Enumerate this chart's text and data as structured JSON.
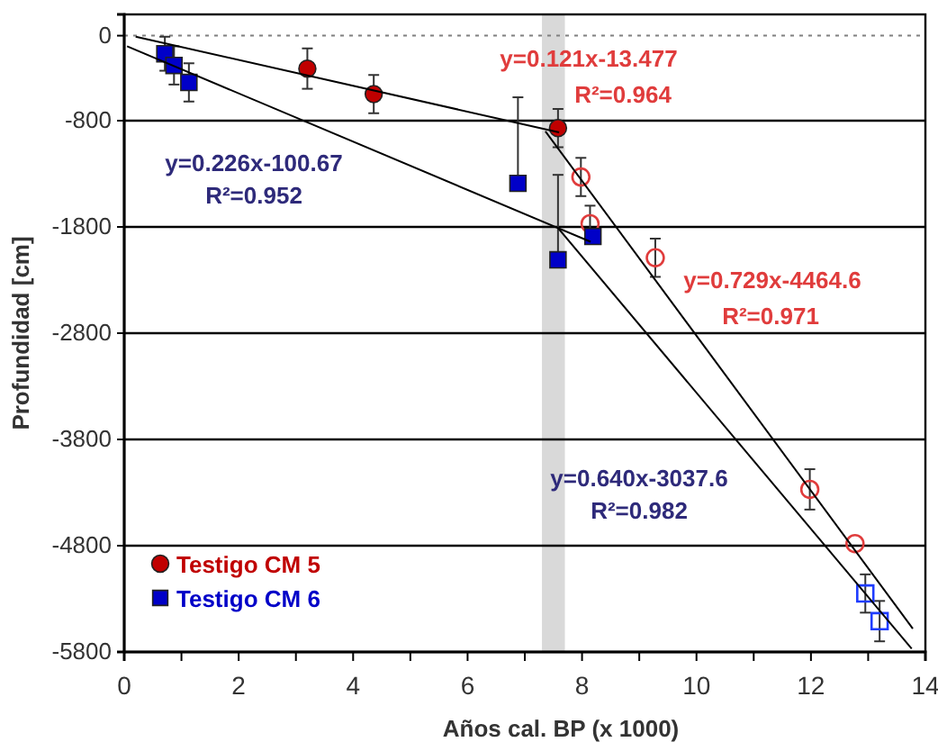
{
  "chart_data": {
    "type": "scatter",
    "xlabel": "Años cal. BP (x 1000)",
    "ylabel": "Profundidad [cm]",
    "xlim": [
      0,
      14
    ],
    "xticks": [
      0,
      {
        "value": 1,
        "label": null
      },
      2,
      {
        "value": 3,
        "label": null
      },
      4,
      {
        "value": 5,
        "label": null
      },
      6,
      {
        "value": 7,
        "label": null
      },
      8,
      {
        "value": 9,
        "label": null
      },
      10,
      {
        "value": 11,
        "label": null
      },
      12,
      {
        "value": 13,
        "label": null
      },
      14
    ],
    "ylim": [
      -5800,
      200
    ],
    "yticks": [
      0,
      -800,
      -1800,
      -2800,
      -3800,
      -4800,
      -5800
    ],
    "grid": "y",
    "legend": "bottom left",
    "ref_lines": [
      {
        "axis": "y",
        "value": 0,
        "line_style": "dotted",
        "color": "#808080"
      }
    ],
    "bands": [
      {
        "axis": "x",
        "from": 7.3,
        "to": 7.7,
        "color": "#d9d9d9"
      }
    ],
    "series": [
      {
        "name": "Testigo CM 5",
        "marker": "circle",
        "color": "#c00000",
        "x": [
          3.2,
          4.36,
          7.58
        ],
        "values": [
          -310,
          -550,
          -870
        ],
        "errors": [
          190,
          180,
          180
        ]
      },
      {
        "marker": "circle",
        "color": "#e03c3c",
        "x": [
          7.98,
          8.14,
          9.28,
          11.98,
          12.77
        ],
        "values": [
          -1330,
          -1770,
          -2090,
          -4270,
          -4780
        ],
        "errors": [
          180,
          170,
          180,
          190,
          null
        ]
      },
      {
        "name": "Testigo CM 6",
        "marker": "square",
        "color": "#0000c8",
        "x": [
          0.71,
          0.87,
          1.13,
          6.88,
          7.58,
          8.19
        ],
        "values": [
          -170,
          -280,
          -440,
          -1390,
          -2110,
          -1890
        ],
        "errors": [
          160,
          180,
          180,
          [
            -1390,
            -580
          ],
          [
            -2110,
            -1310
          ],
          null
        ]
      },
      {
        "marker": "square",
        "color": "#1f3cff",
        "x": [
          12.95,
          13.2
        ],
        "values": [
          -5250,
          -5510
        ],
        "errors": [
          180,
          190
        ]
      },
      {
        "type": "line",
        "marker": "none",
        "color": "#000000",
        "x": [
          0.2,
          7.6
        ],
        "values": [
          -10,
          -910
        ]
      },
      {
        "type": "line",
        "marker": "none",
        "color": "#000000",
        "x": [
          7.36,
          13.78
        ],
        "values": [
          -900,
          -5580
        ]
      },
      {
        "type": "line",
        "marker": "none",
        "color": "#000000",
        "x": [
          0.05,
          8.15
        ],
        "values": [
          -100,
          -1940
        ]
      },
      {
        "type": "line",
        "marker": "none",
        "color": "#000000",
        "x": [
          7.58,
          13.76
        ],
        "values": [
          -1810,
          -5770
        ]
      }
    ],
    "annotations": [
      "y=0.121x-13.477",
      "R²=0.964",
      "y=0.226x-100.67",
      "R²=0.952",
      "y=0.729x-4464.6",
      "R²=0.971",
      "y=0.640x-3037.6",
      "R²=0.982"
    ]
  }
}
